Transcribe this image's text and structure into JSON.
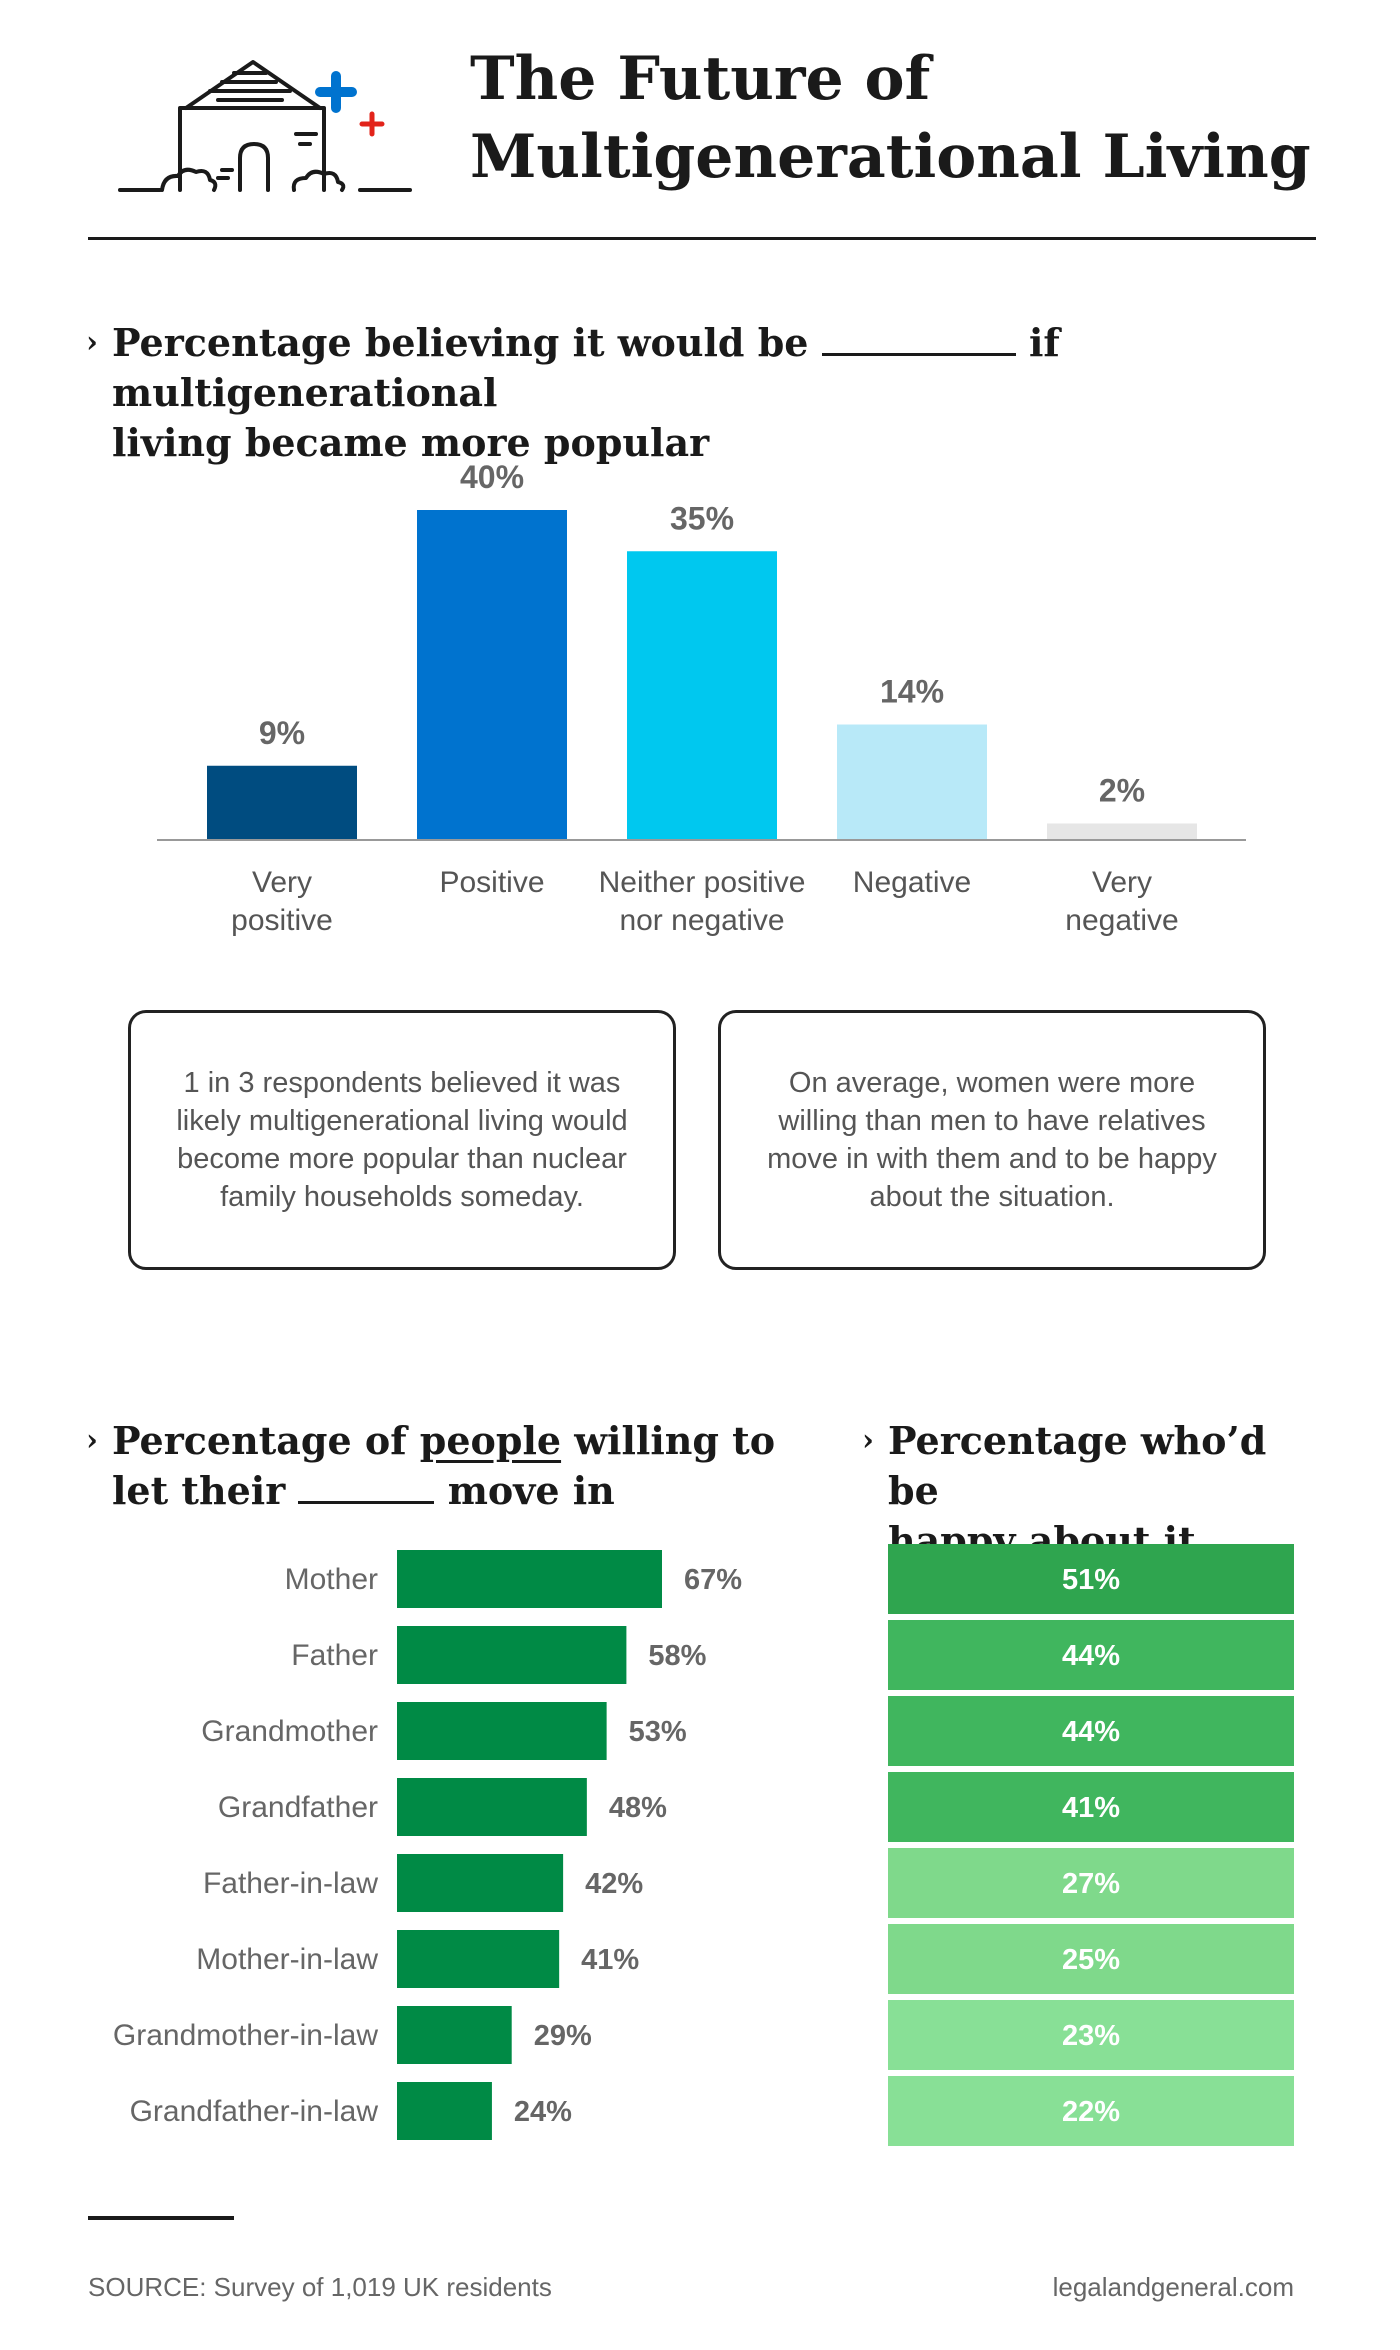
{
  "header": {
    "title_line1": "The Future of",
    "title_line2": "Multigenerational Living"
  },
  "section1": {
    "heading_before": "Percentage believing it would be",
    "heading_after": "if multigenerational",
    "heading_line2": "living became more popular"
  },
  "callouts": {
    "left": "1 in 3 respondents believed it was likely multigenerational living would become more popular than nuclear family households someday.",
    "right": "On average, women were more willing than men to have relatives move in with them and to be happy about the situation."
  },
  "section2": {
    "heading_part1": "Percentage of",
    "heading_underlined": "people",
    "heading_part2": "willing to",
    "heading_line2_before": "let their",
    "heading_line2_after": "move in"
  },
  "section3": {
    "heading_line1": "Percentage who’d be",
    "heading_line2": "happy about it"
  },
  "chart_data": [
    {
      "type": "bar",
      "title": "Percentage believing it would be ________ if multigenerational living became more popular",
      "categories": [
        [
          "Very",
          "positive"
        ],
        [
          "Positive"
        ],
        [
          "Neither positive",
          "nor negative"
        ],
        [
          "Negative"
        ],
        [
          "Very",
          "negative"
        ]
      ],
      "values": [
        9,
        40,
        35,
        14,
        2
      ],
      "data_labels": [
        "9%",
        "40%",
        "35%",
        "14%",
        "2%"
      ],
      "colors": [
        "#004c80",
        "#0073cf",
        "#00c8ef",
        "#b8e9f8",
        "#e6e6e6"
      ],
      "ylim": [
        0,
        40
      ],
      "grid": false
    },
    {
      "type": "bar",
      "orientation": "horizontal",
      "title": "Percentage of people willing to let their ______ move in",
      "categories": [
        "Mother",
        "Father",
        "Grandmother",
        "Grandfather",
        "Father-in-law",
        "Mother-in-law",
        "Grandmother-in-law",
        "Grandfather-in-law"
      ],
      "values": [
        67,
        58,
        53,
        48,
        42,
        41,
        29,
        24
      ],
      "data_labels": [
        "67%",
        "58%",
        "53%",
        "48%",
        "42%",
        "41%",
        "29%",
        "24%"
      ],
      "color": "#008a45",
      "xlim": [
        0,
        67
      ]
    },
    {
      "type": "table",
      "title": "Percentage who’d be happy about it",
      "categories": [
        "Mother",
        "Father",
        "Grandmother",
        "Grandfather",
        "Father-in-law",
        "Mother-in-law",
        "Grandmother-in-law",
        "Grandfather-in-law"
      ],
      "values": [
        51,
        44,
        44,
        41,
        27,
        25,
        23,
        22
      ],
      "data_labels": [
        "51%",
        "44%",
        "44%",
        "41%",
        "27%",
        "25%",
        "23%",
        "22%"
      ],
      "colors": [
        "#2fa54f",
        "#40b65e",
        "#40b65e",
        "#40b65e",
        "#7fd98b",
        "#7fd98b",
        "#88e096",
        "#88e096"
      ]
    }
  ],
  "footer": {
    "source": "SOURCE: Survey of 1,019 UK residents",
    "site": "legalandgeneral.com"
  },
  "colors": {
    "plus_blue": "#0073cf",
    "plus_red": "#e2231a"
  }
}
